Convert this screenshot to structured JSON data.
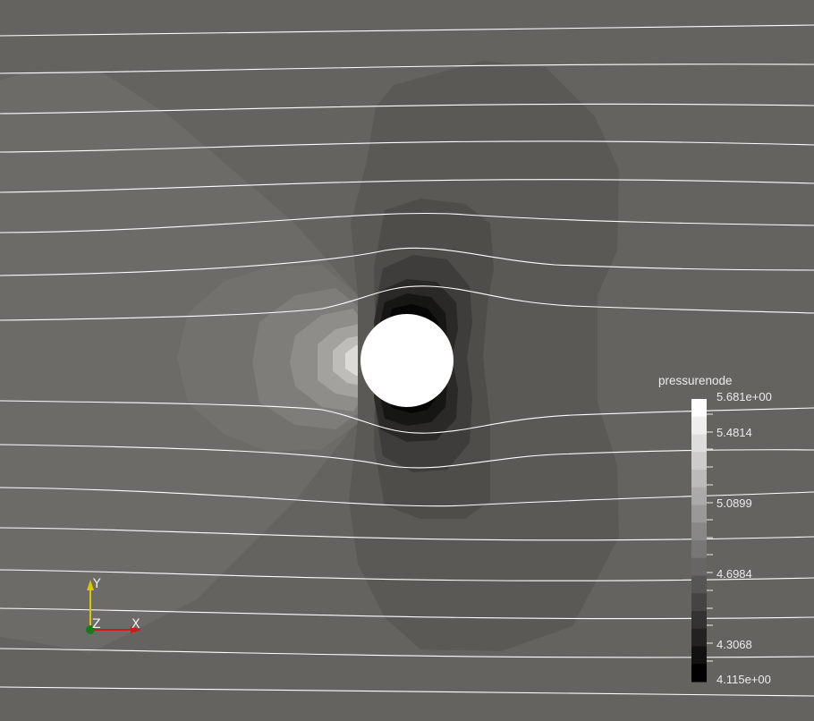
{
  "colorbar": {
    "title": "pressurenode",
    "max_label": "5.681e+00",
    "min_label": "4.115e+00",
    "tick_labels": [
      "5.4814",
      "5.0899",
      "4.6984",
      "4.3068"
    ]
  },
  "orientation_axes": {
    "y_label": "Y",
    "z_label": "Z",
    "x_label": "X",
    "y_color": "#d8c800",
    "x_color": "#cc1a1a",
    "z_color": "#1a7a1a"
  },
  "colors": {
    "background": "#646360",
    "cylinder": "#ffffff",
    "streamline": "#ffffff"
  }
}
